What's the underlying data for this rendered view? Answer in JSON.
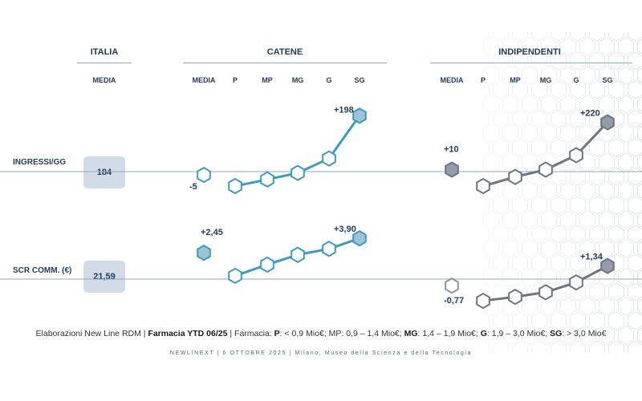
{
  "headers": {
    "italia": "ITALIA",
    "catene": "CATENE",
    "indipendenti": "INDIPENDENTI"
  },
  "italia_sub": "MEDIA",
  "catene_subs": [
    "MEDIA",
    "P",
    "MP",
    "MG",
    "G",
    "SG"
  ],
  "indip_subs": [
    "MEDIA",
    "P",
    "MP",
    "MG",
    "G",
    "SG"
  ],
  "rows": [
    {
      "label": "INGRESSI/GG",
      "italia_value": "184"
    },
    {
      "label": "SCR COMM. (€)",
      "italia_value": "21,59"
    }
  ],
  "footnote": {
    "p1": "Elaborazioni New Line RDM | ",
    "b1": "Farmacia YTD 06/25",
    "p2": " | Farmacia: ",
    "bP": "P",
    "p3": ": < 0,9 Mio€; MP: 0,9 – 1,4 Mio€; ",
    "bMG": "MG",
    "p4": ": 1,4 – 1,9 Mio€; ",
    "bG": "G",
    "p5": ": 1,9 – 3,0 Mio€; ",
    "bSG": "SG",
    "p6": ": > 3,0 Mio€"
  },
  "footer2": "NEWLINEXT | 6 OTTOBRE 2025 | Milano, Museo della Scienza e della Tecnologia",
  "colors": {
    "catene": "#3b9bc1",
    "catene_fill": "#9ec3d6",
    "indip": "#6f7480",
    "indip_fill": "#959ba8",
    "text": "#1f3b5a"
  },
  "chart_data": {
    "type": "line",
    "categories": [
      "P",
      "MP",
      "MG",
      "G",
      "SG"
    ],
    "panels": [
      {
        "group": "CATENE",
        "metric": "INGRESSI/GG",
        "media": {
          "value": -5,
          "label": "-5"
        },
        "segments": [
          -22,
          -12,
          -2,
          20,
          85
        ],
        "end_label": "+198"
      },
      {
        "group": "INDIPENDENTI",
        "metric": "INGRESSI/GG",
        "media": {
          "value": 3,
          "label": "+10"
        },
        "segments": [
          -22,
          -8,
          3,
          25,
          75
        ],
        "end_label": "+220"
      },
      {
        "group": "CATENE",
        "metric": "SCR COMM. (€)",
        "media": {
          "value": 40,
          "label": "+2,45"
        },
        "segments": [
          5,
          22,
          37,
          46,
          62
        ],
        "end_label": "+3,90"
      },
      {
        "group": "INDIPENDENTI",
        "metric": "SCR COMM. (€)",
        "media": {
          "value": -10,
          "label": "-0,77"
        },
        "segments": [
          -33,
          -27,
          -20,
          -5,
          20
        ],
        "end_label": "+1,34"
      }
    ]
  }
}
